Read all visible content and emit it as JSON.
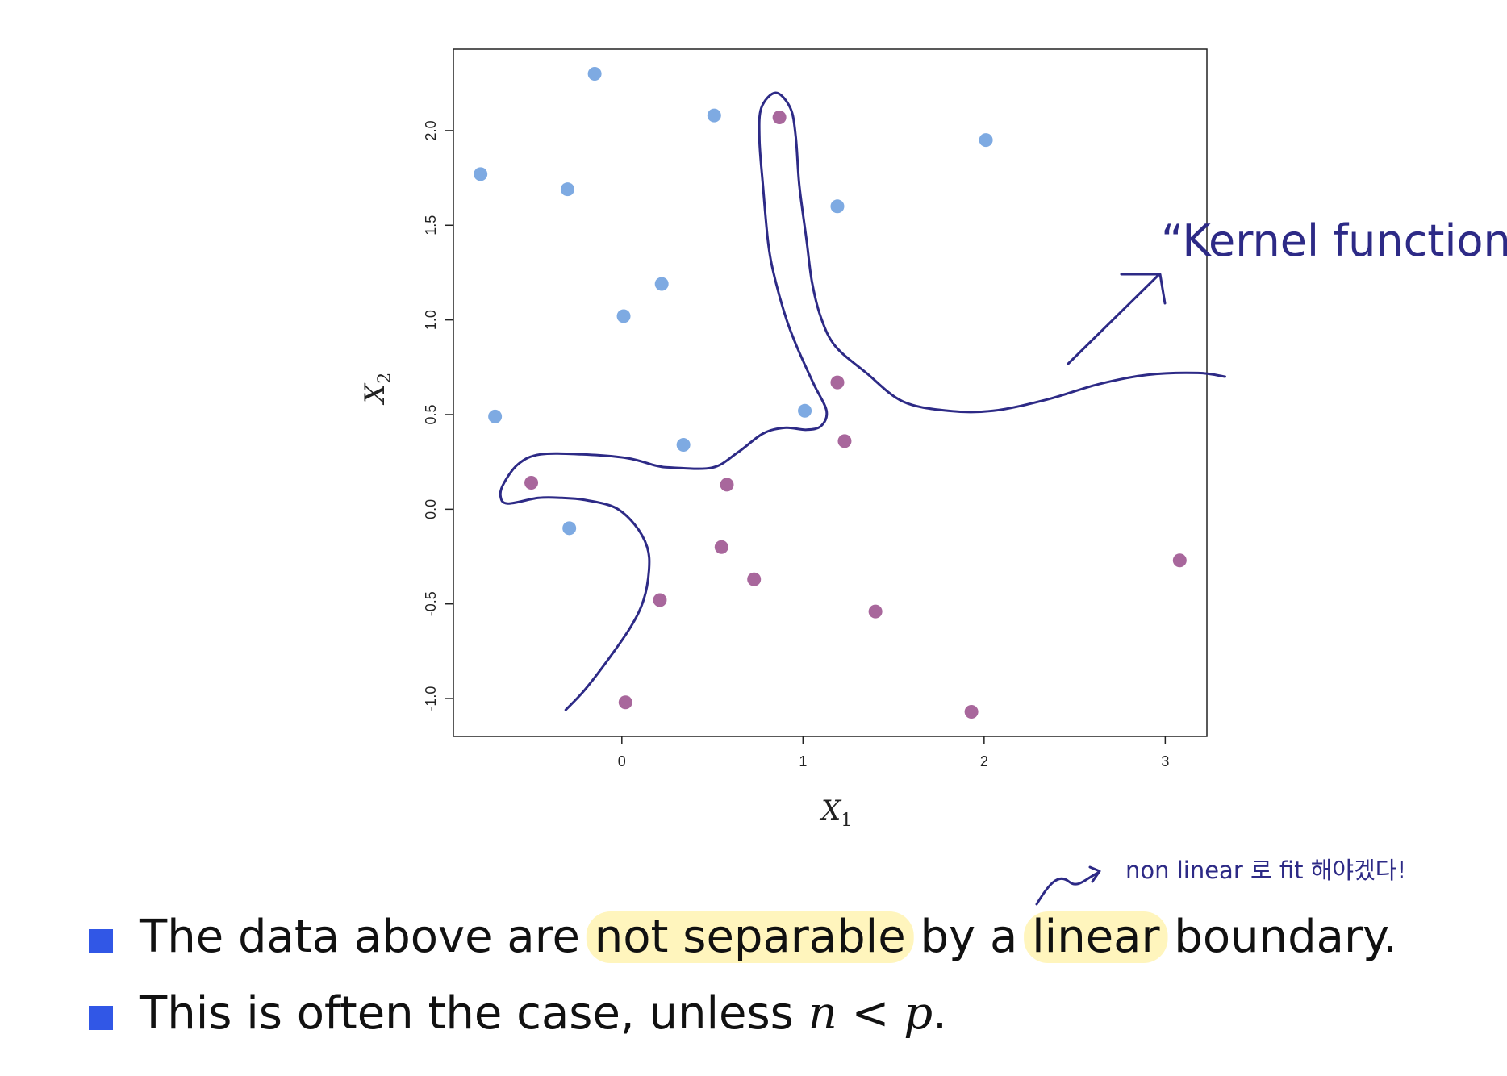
{
  "chart_data": {
    "type": "scatter",
    "title": "",
    "xlabel": "X",
    "xlabel_sub": "1",
    "ylabel": "X",
    "ylabel_sub": "2",
    "xlim": [
      -0.93,
      3.23
    ],
    "ylim": [
      -1.2,
      2.43
    ],
    "x_ticks": [
      0,
      1,
      2,
      3
    ],
    "x_tick_labels": [
      "0",
      "1",
      "2",
      "3"
    ],
    "y_ticks": [
      -1.0,
      -0.5,
      0.0,
      0.5,
      1.0,
      1.5,
      2.0
    ],
    "y_tick_labels": [
      "-1.0",
      "-0.5",
      "0.0",
      "0.5",
      "1.0",
      "1.5",
      "2.0"
    ],
    "grid": false,
    "series": [
      {
        "color": "#7eaae2",
        "points": [
          [
            -0.15,
            2.3
          ],
          [
            0.51,
            2.08
          ],
          [
            2.01,
            1.95
          ],
          [
            -0.78,
            1.77
          ],
          [
            -0.3,
            1.69
          ],
          [
            1.19,
            1.6
          ],
          [
            0.22,
            1.19
          ],
          [
            0.01,
            1.02
          ],
          [
            -0.7,
            0.49
          ],
          [
            1.01,
            0.52
          ],
          [
            0.34,
            0.34
          ],
          [
            -0.29,
            -0.1
          ]
        ]
      },
      {
        "color": "#a8679c",
        "points": [
          [
            0.87,
            2.07
          ],
          [
            1.19,
            0.67
          ],
          [
            1.23,
            0.36
          ],
          [
            -0.5,
            0.14
          ],
          [
            0.58,
            0.13
          ],
          [
            0.55,
            -0.2
          ],
          [
            0.73,
            -0.37
          ],
          [
            0.21,
            -0.48
          ],
          [
            1.4,
            -0.54
          ],
          [
            3.08,
            -0.27
          ],
          [
            0.02,
            -1.02
          ],
          [
            1.93,
            -1.07
          ]
        ]
      }
    ],
    "boundary_curve": [
      [
        -0.31,
        -1.06
      ],
      [
        -0.21,
        -0.96
      ],
      [
        -0.08,
        -0.8
      ],
      [
        0.05,
        -0.62
      ],
      [
        0.12,
        -0.48
      ],
      [
        0.15,
        -0.32
      ],
      [
        0.14,
        -0.2
      ],
      [
        0.07,
        -0.08
      ],
      [
        -0.04,
        0.01
      ],
      [
        -0.21,
        0.05
      ],
      [
        -0.33,
        0.06
      ],
      [
        -0.46,
        0.06
      ],
      [
        -0.63,
        0.03
      ],
      [
        -0.67,
        0.07
      ],
      [
        -0.65,
        0.14
      ],
      [
        -0.57,
        0.24
      ],
      [
        -0.45,
        0.29
      ],
      [
        -0.22,
        0.29
      ],
      [
        0.03,
        0.27
      ],
      [
        0.19,
        0.23
      ],
      [
        0.28,
        0.22
      ],
      [
        0.5,
        0.22
      ],
      [
        0.64,
        0.3
      ],
      [
        0.78,
        0.4
      ],
      [
        0.9,
        0.43
      ],
      [
        1.02,
        0.42
      ],
      [
        1.1,
        0.44
      ],
      [
        1.13,
        0.52
      ],
      [
        1.06,
        0.66
      ],
      [
        0.97,
        0.85
      ],
      [
        0.91,
        1.0
      ],
      [
        0.85,
        1.2
      ],
      [
        0.81,
        1.39
      ],
      [
        0.78,
        1.7
      ],
      [
        0.76,
        1.95
      ],
      [
        0.77,
        2.12
      ],
      [
        0.85,
        2.2
      ],
      [
        0.93,
        2.12
      ],
      [
        0.96,
        1.97
      ],
      [
        0.98,
        1.71
      ],
      [
        1.02,
        1.42
      ],
      [
        1.05,
        1.2
      ],
      [
        1.1,
        1.01
      ],
      [
        1.18,
        0.86
      ],
      [
        1.35,
        0.72
      ],
      [
        1.55,
        0.57
      ],
      [
        1.8,
        0.52
      ],
      [
        2.05,
        0.52
      ],
      [
        2.35,
        0.58
      ],
      [
        2.63,
        0.66
      ],
      [
        2.9,
        0.71
      ],
      [
        3.18,
        0.72
      ],
      [
        3.33,
        0.7
      ]
    ]
  },
  "annotations": {
    "kernel_function": "“Kernel function”",
    "nonlinear_note": "non linear 로 fit 해야겠다!"
  },
  "bullets": [
    {
      "segments": [
        {
          "text": "The data above are "
        },
        {
          "text": "not separable",
          "highlight": "#fff5bd",
          "color": "#f2a35a"
        },
        {
          "text": " by a "
        },
        {
          "text": "linear",
          "highlight": "#fff5bd"
        },
        {
          "text": " boundary."
        }
      ]
    },
    {
      "segments": [
        {
          "text": "This is often the case, unless "
        },
        {
          "text": "n",
          "math": true
        },
        {
          "text": " < "
        },
        {
          "text": "p",
          "math": true
        },
        {
          "text": "."
        }
      ]
    }
  ],
  "colors": {
    "blue_points": "#7eaae2",
    "purple_points": "#a8679c",
    "boundary_curve": "#2d2a86",
    "bullet_square": "#3157e6",
    "axis": "#222222",
    "text": "#111111"
  }
}
